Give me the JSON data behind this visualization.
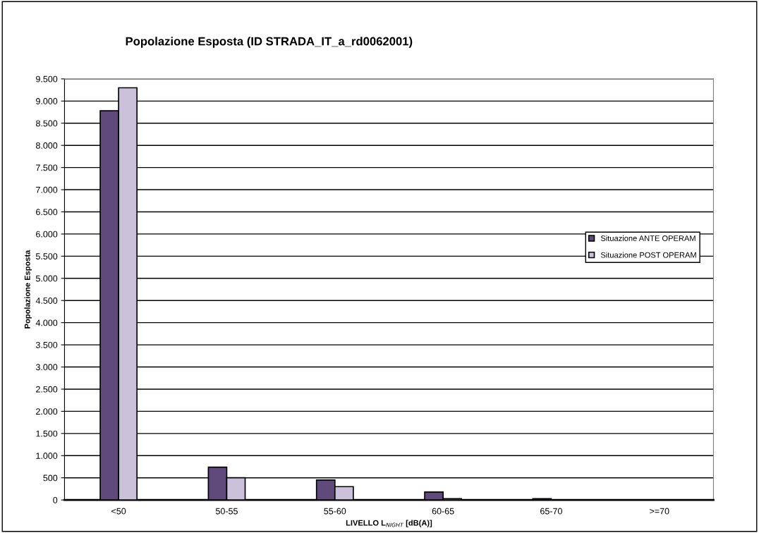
{
  "chart_data": {
    "type": "bar",
    "title": "Popolazione Esposta (ID STRADA_IT_a_rd0062001)",
    "xlabel": "LIVELLO L$_{NIGHT}$ [dB(A)]",
    "ylabel": "Popolazione Esposta",
    "categories": [
      "<50",
      "50-55",
      "55-60",
      "60-65",
      "65-70",
      ">=70"
    ],
    "series": [
      {
        "name": "Situazione ANTE OPERAM",
        "color": "#604a7b",
        "values": [
          8780,
          740,
          450,
          180,
          30,
          0
        ]
      },
      {
        "name": "Situazione POST OPERAM",
        "color": "#ccc1da",
        "values": [
          9300,
          500,
          300,
          30,
          0,
          0
        ]
      }
    ],
    "ylim": [
      0,
      9500
    ],
    "yticks": [
      {
        "value": 0,
        "label": "0"
      },
      {
        "value": 500,
        "label": "500"
      },
      {
        "value": 1000,
        "label": "1.000"
      },
      {
        "value": 1500,
        "label": "1.500"
      },
      {
        "value": 2000,
        "label": "2.000"
      },
      {
        "value": 2500,
        "label": "2.500"
      },
      {
        "value": 3000,
        "label": "3.000"
      },
      {
        "value": 3500,
        "label": "3.500"
      },
      {
        "value": 4000,
        "label": "4.000"
      },
      {
        "value": 4500,
        "label": "4.500"
      },
      {
        "value": 5000,
        "label": "5.000"
      },
      {
        "value": 5500,
        "label": "5.500"
      },
      {
        "value": 6000,
        "label": "6.000"
      },
      {
        "value": 6500,
        "label": "6.500"
      },
      {
        "value": 7000,
        "label": "7.000"
      },
      {
        "value": 7500,
        "label": "7.500"
      },
      {
        "value": 8000,
        "label": "8.000"
      },
      {
        "value": 8500,
        "label": "8.500"
      },
      {
        "value": 9000,
        "label": "9.000"
      },
      {
        "value": 9500,
        "label": "9.500"
      }
    ],
    "grid": "y",
    "legend": "right"
  }
}
